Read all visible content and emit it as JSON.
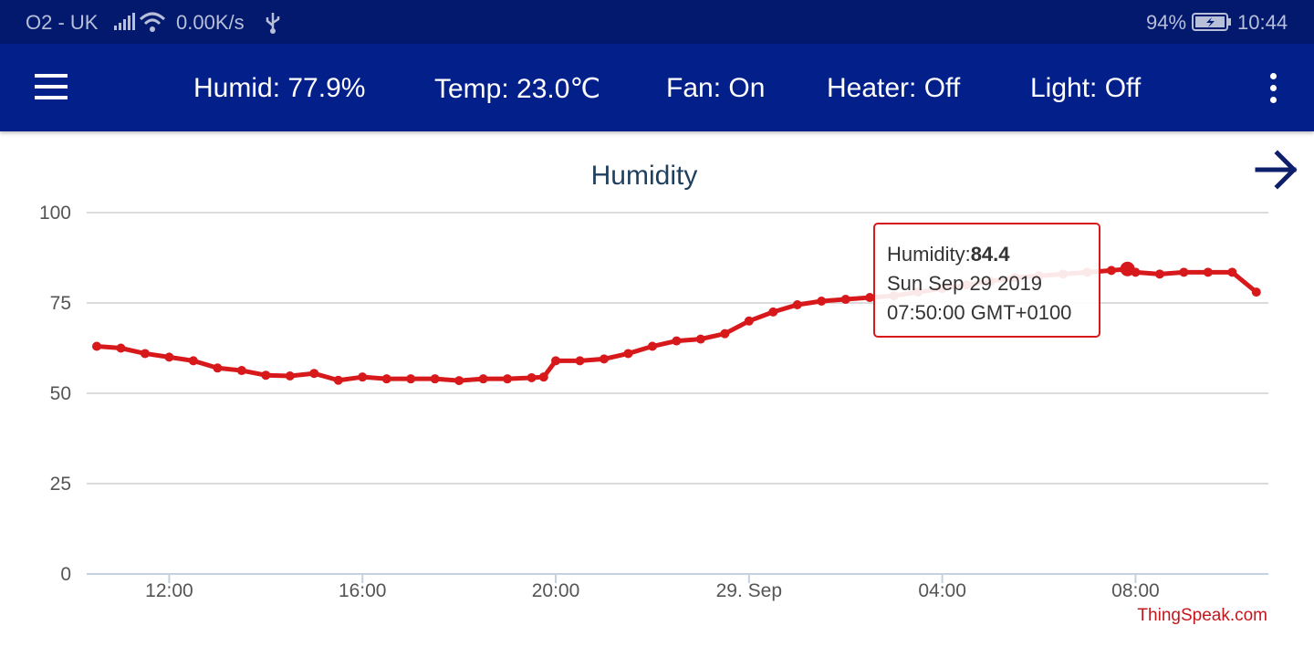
{
  "status_bar": {
    "carrier": "O2 - UK",
    "speed": "0.00K/s",
    "battery": "94%",
    "time": "10:44"
  },
  "app_bar": {
    "humid": "Humid: 77.9%",
    "temp": "Temp: 23.0℃",
    "fan": "Fan: On",
    "heater": "Heater: Off",
    "light": "Light: Off"
  },
  "colors": {
    "status_bar": "#03196e",
    "app_bar": "#03208a",
    "series": "#d7191c",
    "title": "#1f3f5e",
    "credit": "#c4161c"
  },
  "icons": [
    "menu-icon",
    "overflow-icon",
    "arrow-right-icon",
    "signal-icon",
    "wifi-icon",
    "usb-icon",
    "battery-icon"
  ],
  "chart_data": {
    "type": "line",
    "title": "Humidity",
    "credit": "ThingSpeak.com",
    "ylim": [
      0,
      100
    ],
    "y_ticks": [
      0,
      25,
      50,
      75,
      100
    ],
    "x_ticks": [
      "12:00",
      "16:00",
      "20:00",
      "29. Sep",
      "04:00",
      "08:00"
    ],
    "grid": true,
    "series": [
      {
        "name": "Humidity",
        "x": [
          "2019-09-28 10:30",
          "2019-09-28 11:00",
          "2019-09-28 11:30",
          "2019-09-28 12:00",
          "2019-09-28 12:30",
          "2019-09-28 13:00",
          "2019-09-28 13:30",
          "2019-09-28 14:00",
          "2019-09-28 14:30",
          "2019-09-28 15:00",
          "2019-09-28 15:30",
          "2019-09-28 16:00",
          "2019-09-28 16:30",
          "2019-09-28 17:00",
          "2019-09-28 17:30",
          "2019-09-28 18:00",
          "2019-09-28 18:30",
          "2019-09-28 19:00",
          "2019-09-28 19:30",
          "2019-09-28 19:45",
          "2019-09-28 20:00",
          "2019-09-28 20:30",
          "2019-09-28 21:00",
          "2019-09-28 21:30",
          "2019-09-28 22:00",
          "2019-09-28 22:30",
          "2019-09-28 23:00",
          "2019-09-28 23:30",
          "2019-09-29 00:00",
          "2019-09-29 00:30",
          "2019-09-29 01:00",
          "2019-09-29 01:30",
          "2019-09-29 02:00",
          "2019-09-29 02:30",
          "2019-09-29 03:00",
          "2019-09-29 03:30",
          "2019-09-29 04:00",
          "2019-09-29 04:30",
          "2019-09-29 05:00",
          "2019-09-29 05:30",
          "2019-09-29 06:00",
          "2019-09-29 06:30",
          "2019-09-29 07:00",
          "2019-09-29 07:30",
          "2019-09-29 07:50",
          "2019-09-29 08:00",
          "2019-09-29 08:30",
          "2019-09-29 09:00",
          "2019-09-29 09:30",
          "2019-09-29 10:00",
          "2019-09-29 10:30"
        ],
        "values": [
          63,
          62.5,
          61,
          60,
          59,
          57,
          56.3,
          55,
          54.8,
          55.5,
          53.6,
          54.5,
          54,
          54,
          54,
          53.5,
          54,
          54,
          54.3,
          54.5,
          59,
          59,
          59.5,
          61,
          63,
          64.5,
          65,
          66.5,
          70,
          72.5,
          74.5,
          75.5,
          76,
          76.5,
          77,
          78,
          79,
          80,
          81,
          82,
          82.5,
          83,
          83.5,
          84,
          84.4,
          83.5,
          83,
          83.5,
          83.5,
          83.5,
          78
        ]
      }
    ],
    "tooltip": {
      "label": "Humidity:",
      "value": "84.4",
      "date": "Sun Sep 29 2019",
      "time": "07:50:00 GMT+0100"
    }
  }
}
